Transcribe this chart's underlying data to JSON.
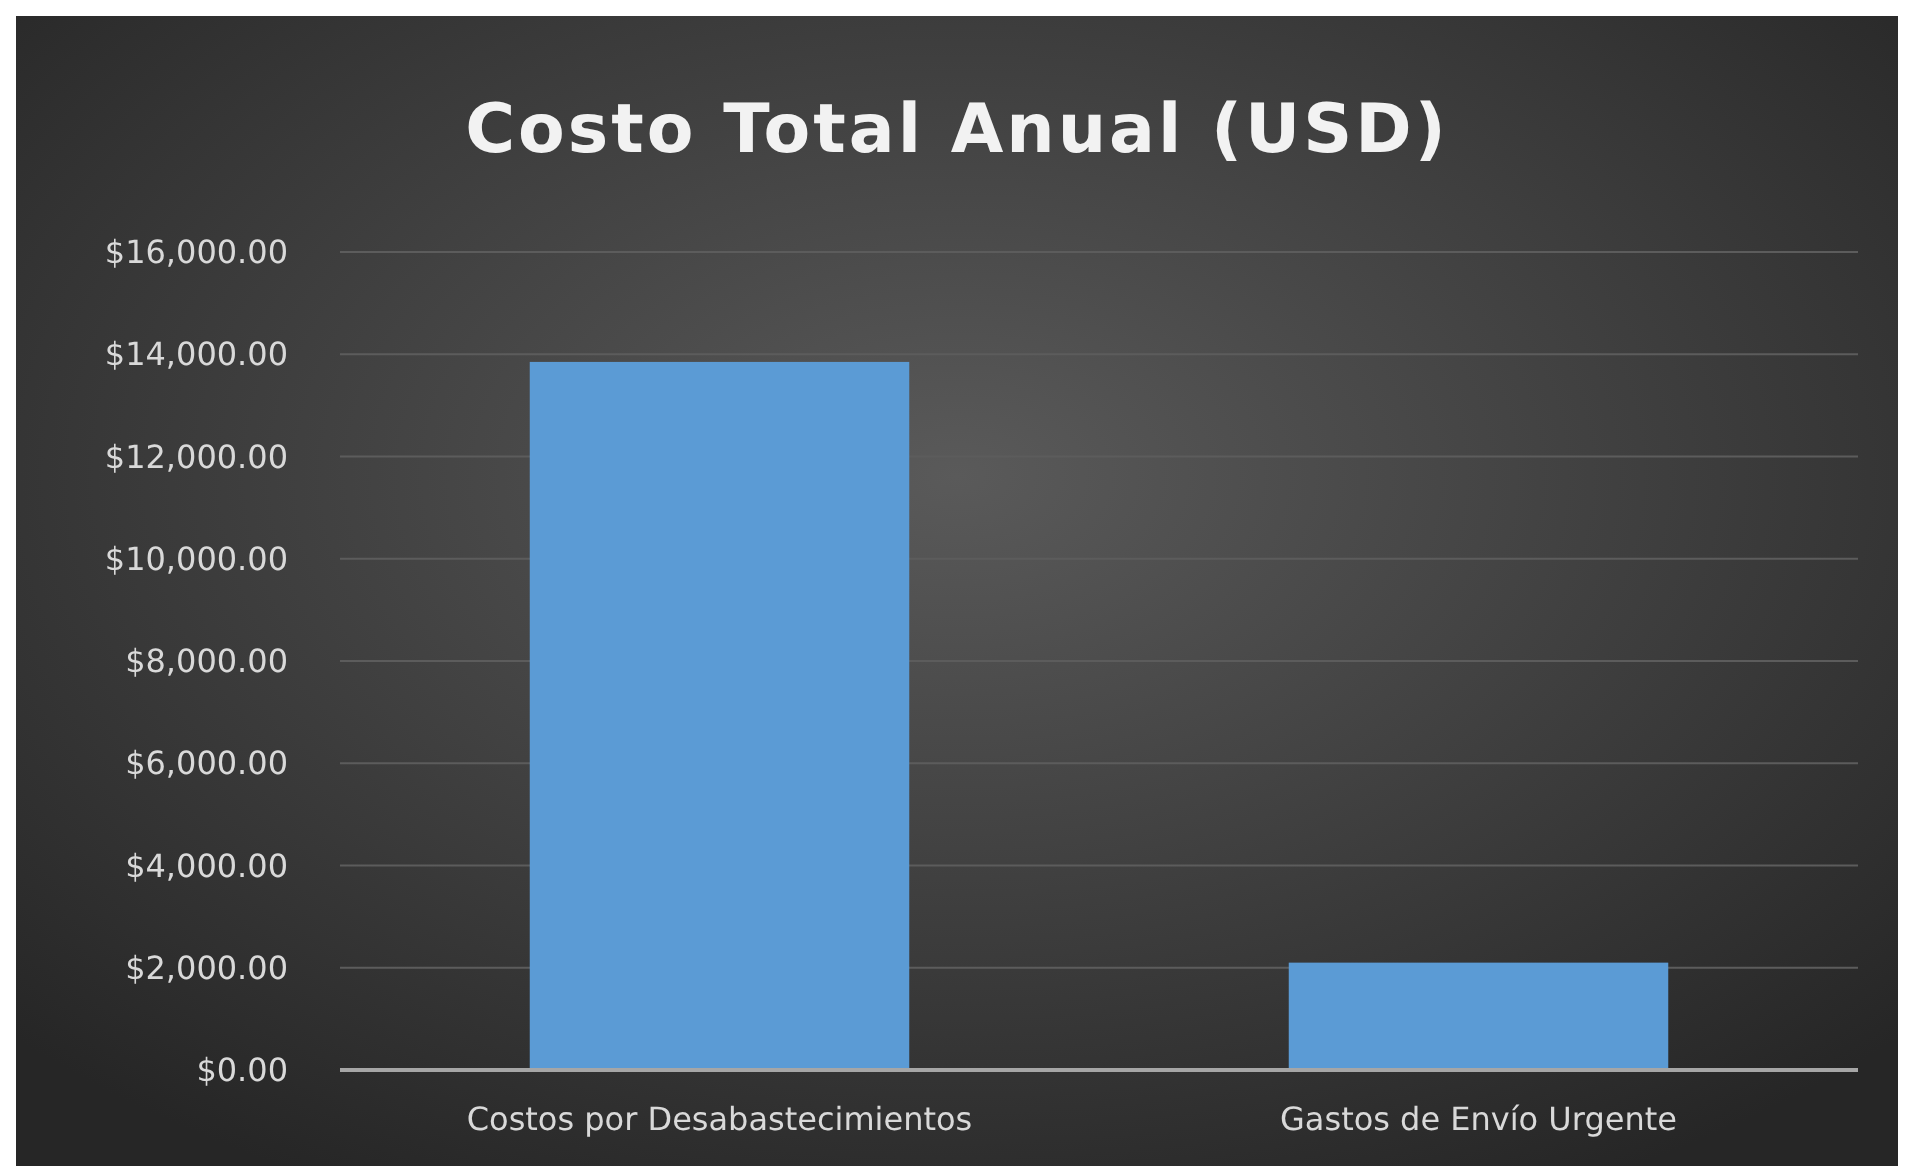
{
  "chart_data": {
    "type": "bar",
    "title": "Costo Total Anual (USD)",
    "categories": [
      "Costos por Desabastecimientos",
      "Gastos de Envío Urgente"
    ],
    "values": [
      13850,
      2100
    ],
    "color": "#5b9bd5",
    "ylim": [
      0,
      16000
    ],
    "yticks": [
      {
        "value": 0,
        "label": "$0.00"
      },
      {
        "value": 2000,
        "label": "$2,000.00"
      },
      {
        "value": 4000,
        "label": "$4,000.00"
      },
      {
        "value": 6000,
        "label": "$6,000.00"
      },
      {
        "value": 8000,
        "label": "$8,000.00"
      },
      {
        "value": 10000,
        "label": "$10,000.00"
      },
      {
        "value": 12000,
        "label": "$12,000.00"
      },
      {
        "value": 14000,
        "label": "$14,000.00"
      },
      {
        "value": 16000,
        "label": "$16,000.00"
      }
    ],
    "grid": true
  }
}
